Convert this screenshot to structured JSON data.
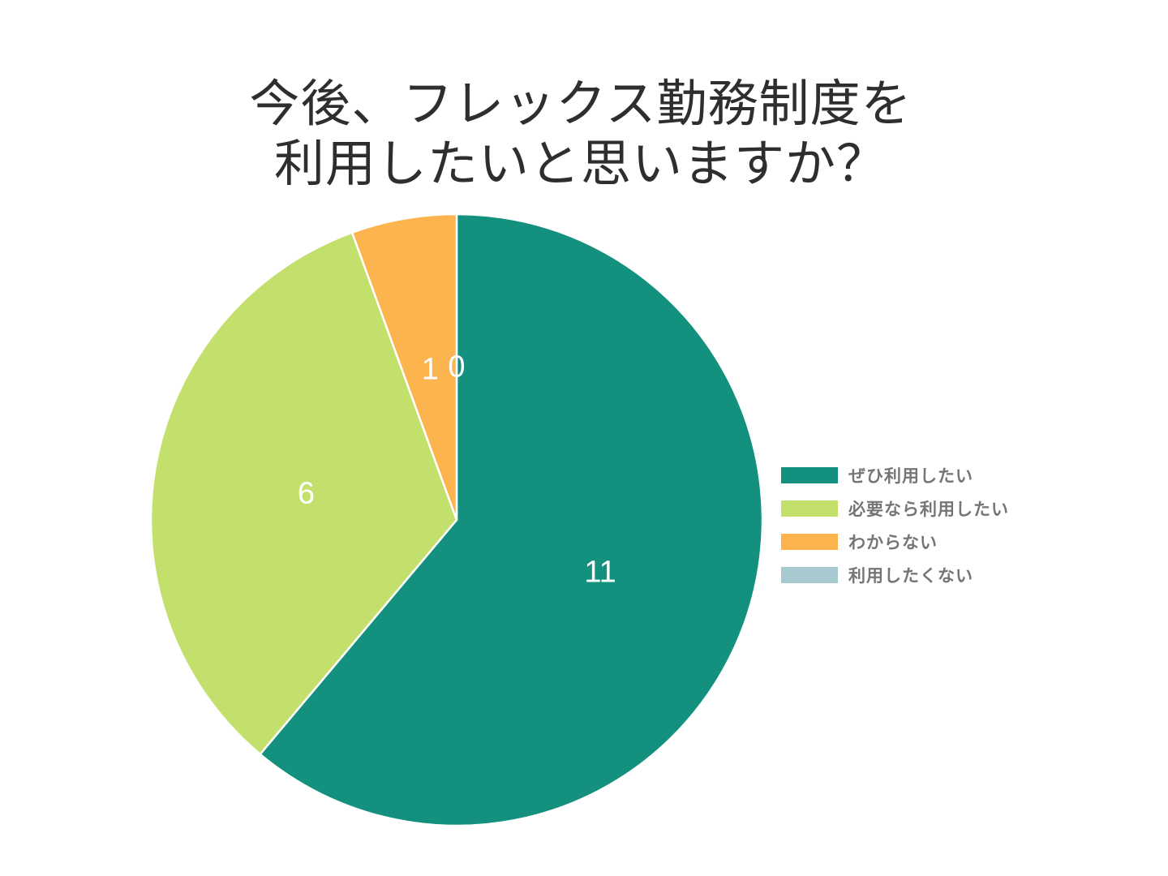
{
  "chart_data": {
    "type": "pie",
    "title": "今後、フレックス勤務制度を 利用したいと思いますか？",
    "title_lines": [
      "今後、フレックス勤務制度を",
      "利用したいと思いますか？"
    ],
    "categories": [
      "ぜひ利用したい",
      "必要なら利用したい",
      "わからない",
      "利用したくない"
    ],
    "values": [
      11,
      6,
      1,
      0
    ],
    "colors": [
      "#13917E",
      "#C3E06D",
      "#FCB44E",
      "#A6C9D0"
    ],
    "total": 18,
    "start_angle_deg": 0,
    "direction": "clockwise",
    "slice_value_labels": [
      "11",
      "6",
      "1",
      "0"
    ],
    "slice_label_color": "#ffffff",
    "slice_border_color": "#ffffff",
    "legend_position": "right",
    "legend_text_color": "#757575",
    "title_color": "#2e2e2e",
    "background_color": "#ffffff"
  }
}
